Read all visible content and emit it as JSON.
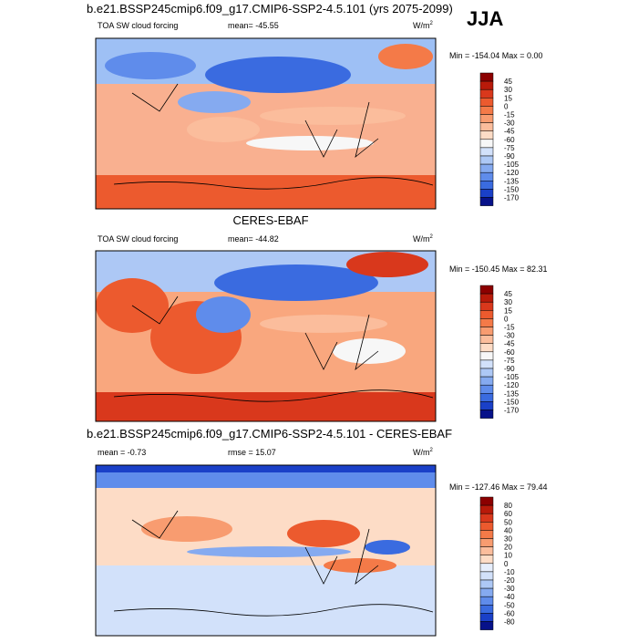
{
  "season": "JJA",
  "panels": [
    {
      "title": "b.e21.BSSP245cmip6.f09_g17.CMIP6-SSP2-4.5.101 (yrs 2075-2099)",
      "left": "TOA SW cloud forcing",
      "center": "mean= -45.55",
      "units": "W/m",
      "units_exp": "2",
      "minmax": "Min = -154.04 Max =  0.00",
      "colorbar": {
        "levels": [
          45,
          30,
          15,
          0,
          -15,
          -30,
          -45,
          -60,
          -75,
          -90,
          -105,
          -120,
          -135,
          -150,
          -170
        ],
        "colors": [
          "#8c0000",
          "#b81a0a",
          "#d9381c",
          "#ec5a2e",
          "#f47a48",
          "#f89c70",
          "#fbbd9c",
          "#fddcc6",
          "#f7f7f7",
          "#d2e1fa",
          "#adc8f5",
          "#85aaf0",
          "#5f8ceb",
          "#3a6be0",
          "#1a40c8",
          "#07128a"
        ]
      }
    },
    {
      "title": "CERES-EBAF",
      "left": "TOA SW cloud forcing",
      "center": "mean= -44.82",
      "units": "W/m",
      "units_exp": "2",
      "minmax": "Min = -150.45 Max =  82.31",
      "colorbar": {
        "levels": [
          45,
          30,
          15,
          0,
          -15,
          -30,
          -45,
          -60,
          -75,
          -90,
          -105,
          -120,
          -135,
          -150,
          -170
        ],
        "colors": [
          "#8c0000",
          "#b81a0a",
          "#d9381c",
          "#ec5a2e",
          "#f47a48",
          "#f89c70",
          "#fbbd9c",
          "#fddcc6",
          "#f7f7f7",
          "#d2e1fa",
          "#adc8f5",
          "#85aaf0",
          "#5f8ceb",
          "#3a6be0",
          "#1a40c8",
          "#07128a"
        ]
      }
    },
    {
      "title": "b.e21.BSSP245cmip6.f09_g17.CMIP6-SSP2-4.5.101 - CERES-EBAF",
      "left": "mean =  -0.73",
      "center": "rmse =  15.07",
      "units": "W/m",
      "units_exp": "2",
      "minmax": "Min = -127.46 Max =  79.44",
      "colorbar": {
        "levels": [
          80,
          60,
          50,
          40,
          30,
          20,
          10,
          0,
          -10,
          -20,
          -30,
          -40,
          -50,
          -60,
          -80
        ],
        "colors": [
          "#8c0000",
          "#b81a0a",
          "#d9381c",
          "#ec5a2e",
          "#f47a48",
          "#f89c70",
          "#fbbd9c",
          "#fddcc6",
          "#e6eefc",
          "#d2e1fa",
          "#adc8f5",
          "#85aaf0",
          "#5f8ceb",
          "#3a6be0",
          "#1a40c8",
          "#07128a"
        ]
      }
    }
  ]
}
